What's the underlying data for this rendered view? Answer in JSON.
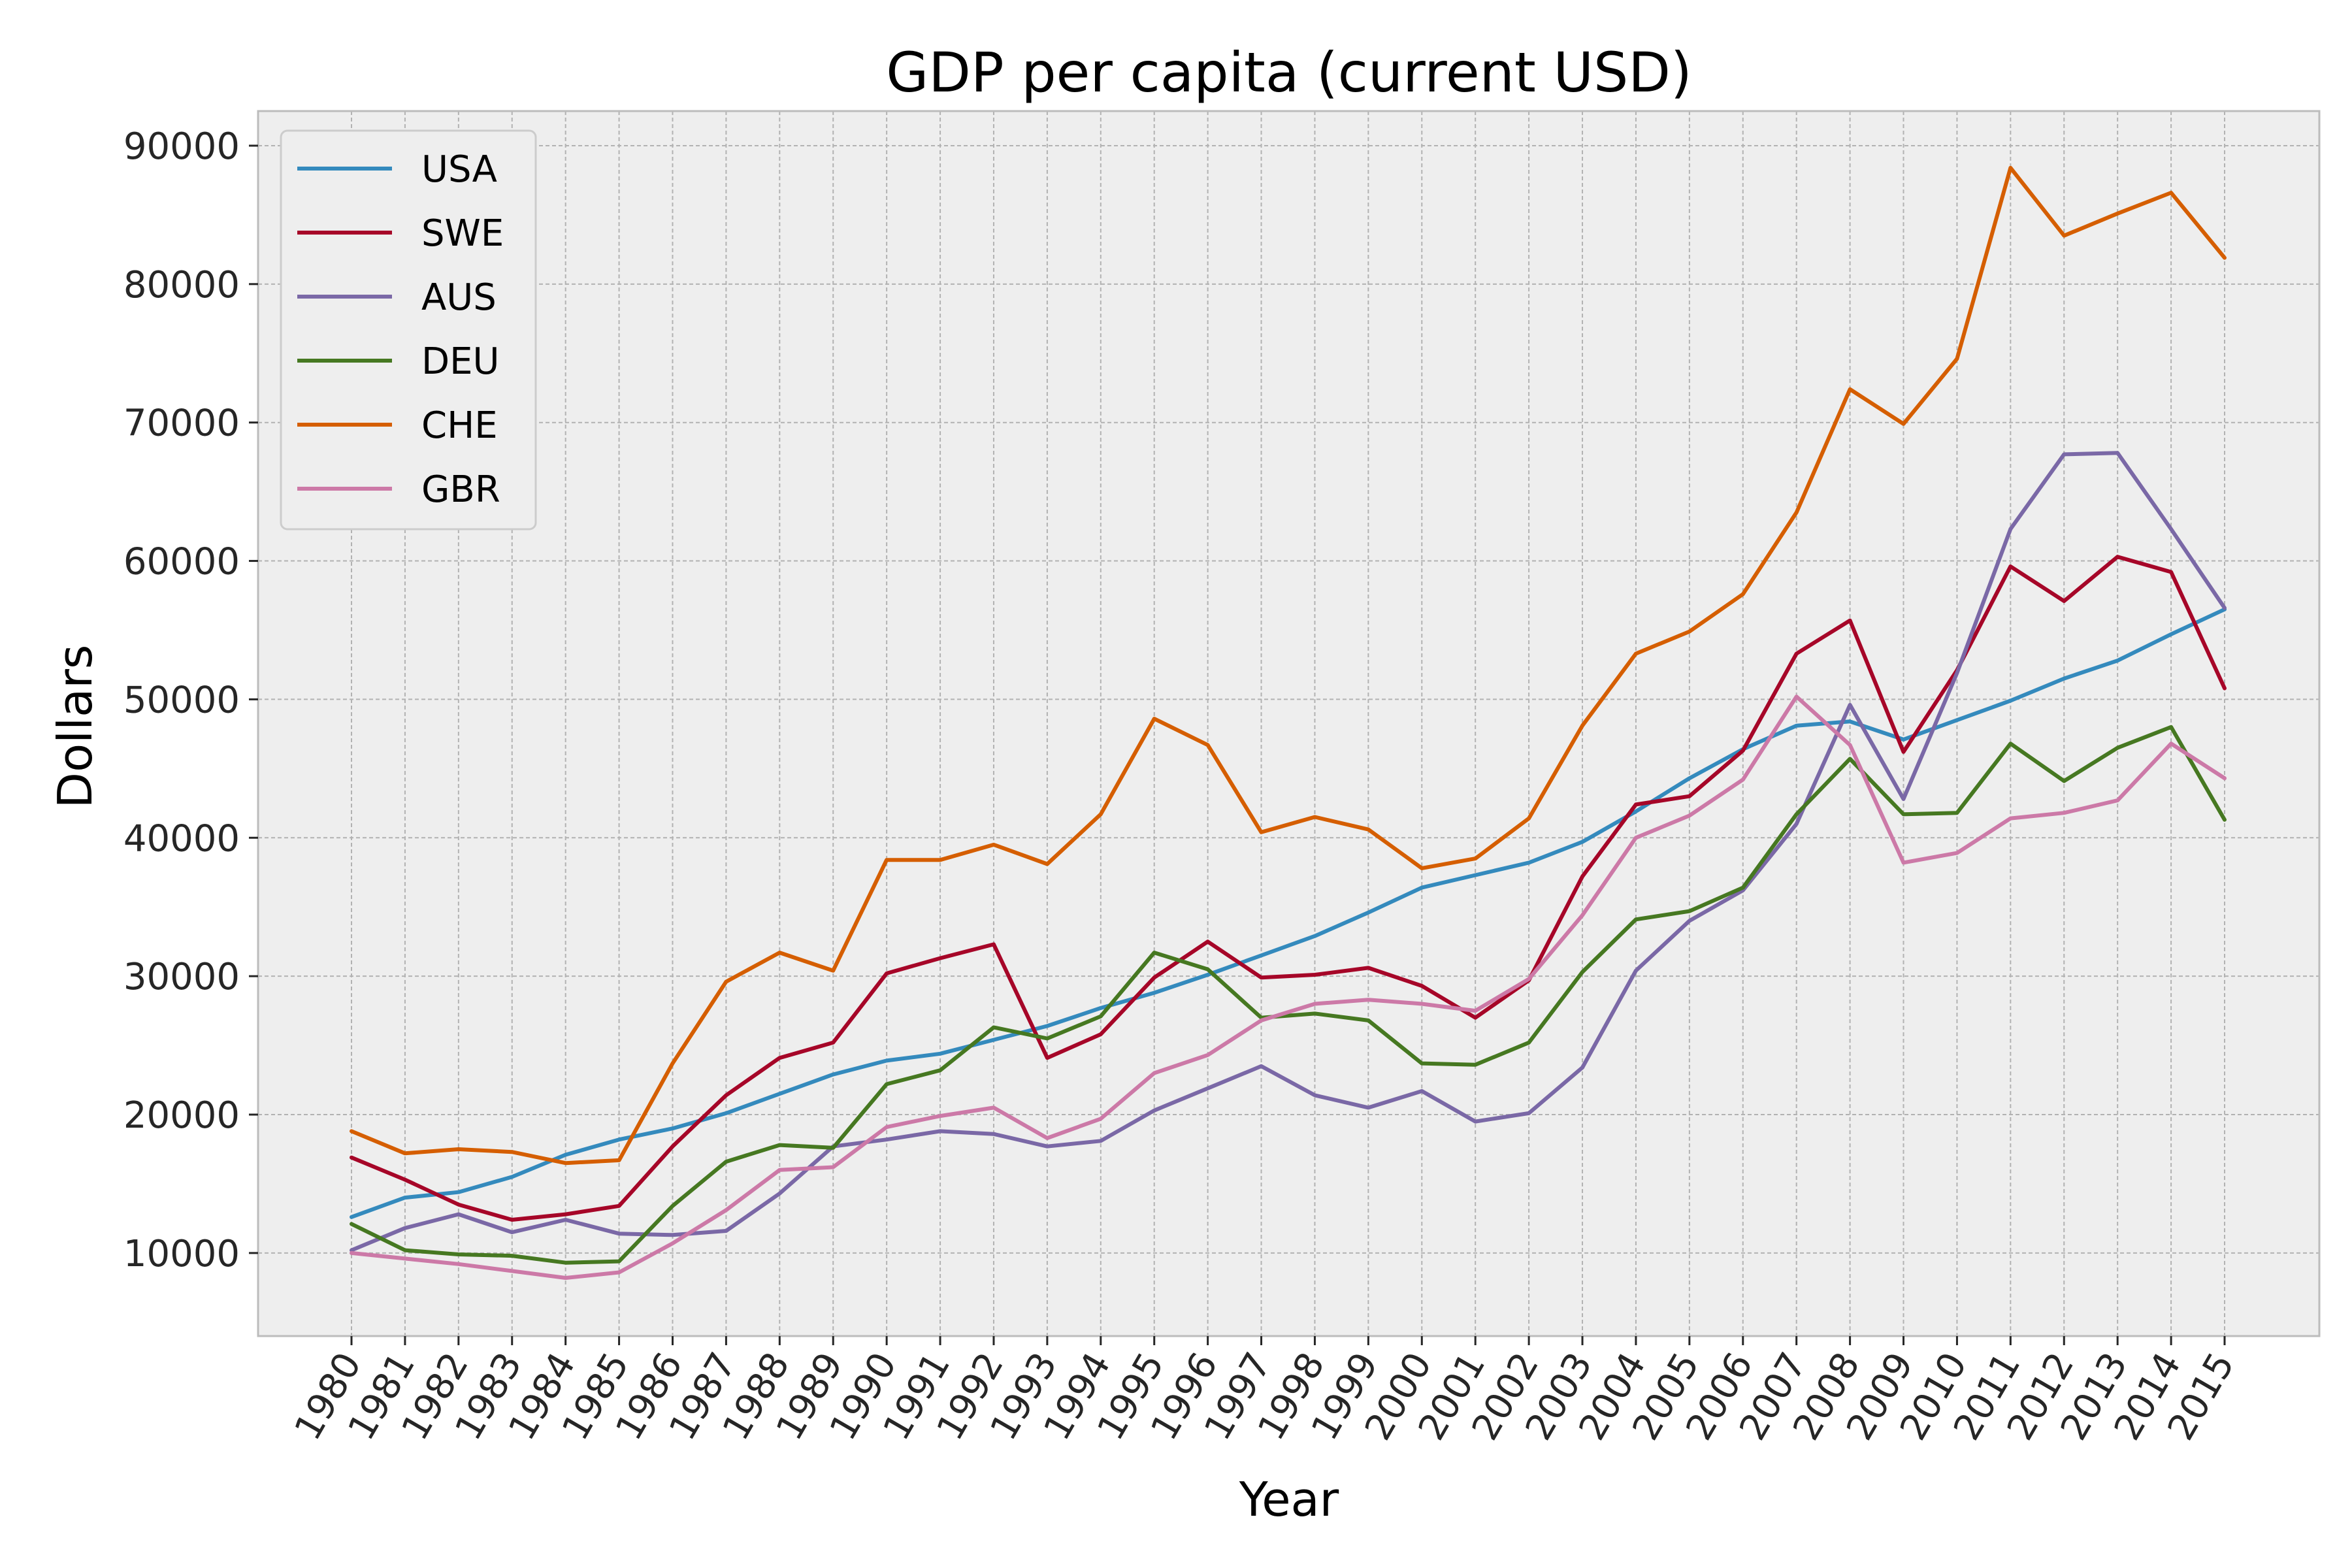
{
  "chart_data": {
    "type": "line",
    "title": "GDP per capita (current USD)",
    "xlabel": "Year",
    "ylabel": "Dollars",
    "x": [
      "1980",
      "1981",
      "1982",
      "1983",
      "1984",
      "1985",
      "1986",
      "1987",
      "1988",
      "1989",
      "1990",
      "1991",
      "1992",
      "1993",
      "1994",
      "1995",
      "1996",
      "1997",
      "1998",
      "1999",
      "2000",
      "2001",
      "2002",
      "2003",
      "2004",
      "2005",
      "2006",
      "2007",
      "2008",
      "2009",
      "2010",
      "2011",
      "2012",
      "2013",
      "2014",
      "2015"
    ],
    "ylim": [
      4000,
      92500
    ],
    "yticks": [
      10000,
      20000,
      30000,
      40000,
      50000,
      60000,
      70000,
      80000,
      90000
    ],
    "grid": true,
    "legend_position": "top-left",
    "series": [
      {
        "name": "USA",
        "color": "#348abd",
        "values": [
          12600,
          14000,
          14400,
          15500,
          17100,
          18200,
          19000,
          20100,
          21500,
          22900,
          23900,
          24400,
          25400,
          26400,
          27700,
          28800,
          30100,
          31500,
          32900,
          34600,
          36400,
          37300,
          38200,
          39700,
          41900,
          44300,
          46400,
          48100,
          48400,
          47100,
          48500,
          49900,
          51500,
          52800,
          54700,
          56500
        ]
      },
      {
        "name": "SWE",
        "color": "#a60628",
        "values": [
          16900,
          15300,
          13500,
          12400,
          12800,
          13400,
          17700,
          21400,
          24100,
          25200,
          30200,
          31300,
          32300,
          24100,
          25800,
          29900,
          32500,
          29900,
          30100,
          30600,
          29300,
          27000,
          29700,
          37200,
          42400,
          43000,
          46300,
          53300,
          55700,
          46200,
          52100,
          59600,
          57100,
          60300,
          59200,
          50800
        ]
      },
      {
        "name": "AUS",
        "color": "#7a68a6",
        "values": [
          10200,
          11800,
          12800,
          11500,
          12400,
          11400,
          11300,
          11600,
          14300,
          17700,
          18200,
          18800,
          18600,
          17700,
          18100,
          20300,
          21900,
          23500,
          21400,
          20500,
          21700,
          19500,
          20100,
          23400,
          30400,
          34000,
          36200,
          41000,
          49600,
          42800,
          51900,
          62300,
          67700,
          67800,
          62300,
          56600
        ]
      },
      {
        "name": "DEU",
        "color": "#467821",
        "values": [
          12100,
          10200,
          9900,
          9800,
          9300,
          9400,
          13400,
          16600,
          17800,
          17600,
          22200,
          23200,
          26300,
          25500,
          27100,
          31700,
          30500,
          27000,
          27300,
          26800,
          23700,
          23600,
          25200,
          30300,
          34100,
          34700,
          36400,
          41700,
          45700,
          41700,
          41800,
          46800,
          44100,
          46500,
          48000,
          41300
        ]
      },
      {
        "name": "CHE",
        "color": "#d55e00",
        "values": [
          18800,
          17200,
          17500,
          17300,
          16500,
          16700,
          23700,
          29600,
          31700,
          30400,
          38400,
          38400,
          39500,
          38100,
          41700,
          48600,
          46700,
          40400,
          41500,
          40600,
          37800,
          38500,
          41400,
          48100,
          53300,
          54900,
          57600,
          63500,
          72400,
          69900,
          74600,
          88400,
          83500,
          85100,
          86600,
          81900
        ]
      },
      {
        "name": "GBR",
        "color": "#cc79a7",
        "values": [
          10000,
          9600,
          9200,
          8700,
          8200,
          8600,
          10700,
          13100,
          16000,
          16200,
          19100,
          19900,
          20500,
          18300,
          19700,
          23000,
          24300,
          26800,
          28000,
          28300,
          28000,
          27500,
          29800,
          34400,
          40000,
          41600,
          44200,
          50200,
          46700,
          38200,
          38900,
          41400,
          41800,
          42700,
          46800,
          44300
        ]
      }
    ]
  }
}
